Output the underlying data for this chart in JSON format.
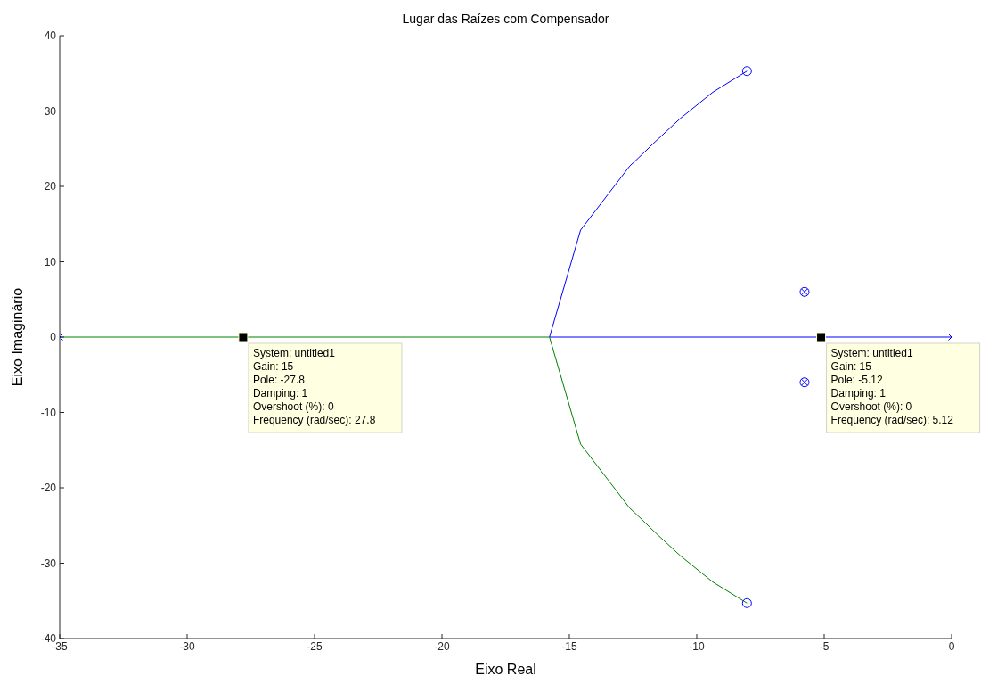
{
  "chart_data": {
    "type": "line",
    "title": "Lugar das Raízes com Compensador",
    "xlabel": "Eixo Real",
    "ylabel": "Eixo Imaginário",
    "xlim": [
      -35,
      0
    ],
    "xticks": [
      -35,
      -30,
      -25,
      -20,
      -15,
      -10,
      -5,
      0
    ],
    "ylim": [
      -40,
      40
    ],
    "yticks": [
      -40,
      -30,
      -20,
      -10,
      0,
      10,
      20,
      30,
      40
    ],
    "grid": false,
    "series": [
      {
        "color": "#0000ff",
        "marker": "none",
        "x": [
          0,
          -15.78,
          -14.56,
          -12.63,
          -12.28,
          -11.64,
          -10.65,
          -9.37,
          -8.03
        ],
        "values": [
          0,
          0,
          14.2,
          22.7,
          23.8,
          25.9,
          29.0,
          32.5,
          35.3
        ]
      },
      {
        "color": "#008000",
        "marker": "none",
        "x": [
          -35,
          -15.78,
          -14.56,
          -12.63,
          -12.28,
          -11.64,
          -10.65,
          -9.37,
          -8.03
        ],
        "values": [
          0,
          0,
          -14.2,
          -22.7,
          -23.8,
          -25.9,
          -29.0,
          -32.5,
          -35.3
        ]
      },
      {
        "type": "scatter",
        "color": "#0000ff",
        "marker": "cross",
        "x": [
          -35,
          0,
          -5.77,
          -5.77
        ],
        "values": [
          0,
          0,
          6,
          -6
        ]
      },
      {
        "type": "scatter",
        "color": "#0000ff",
        "marker": "circle",
        "x": [
          -8.03,
          -8.03,
          -5.77,
          -5.77
        ],
        "values": [
          35.3,
          -35.3,
          6,
          -6
        ]
      },
      {
        "type": "scatter",
        "color": "#000000",
        "marker": "square",
        "x": [
          -27.8,
          -5.12
        ],
        "values": [
          0,
          0
        ]
      }
    ],
    "annotations": [
      {
        "text": "System: untitled1\nGain: 15\nPole: -27.8\nDamping: 1\nOvershoot (%): 0\nFrequency (rad/sec): 27.8",
        "x": -27.8,
        "y": 0
      },
      {
        "text": "System: untitled1\nGain: 15\nPole: -5.12\nDamping: 1\nOvershoot (%): 0\nFrequency (rad/sec): 5.12",
        "x": -5.12,
        "y": 0
      }
    ]
  }
}
